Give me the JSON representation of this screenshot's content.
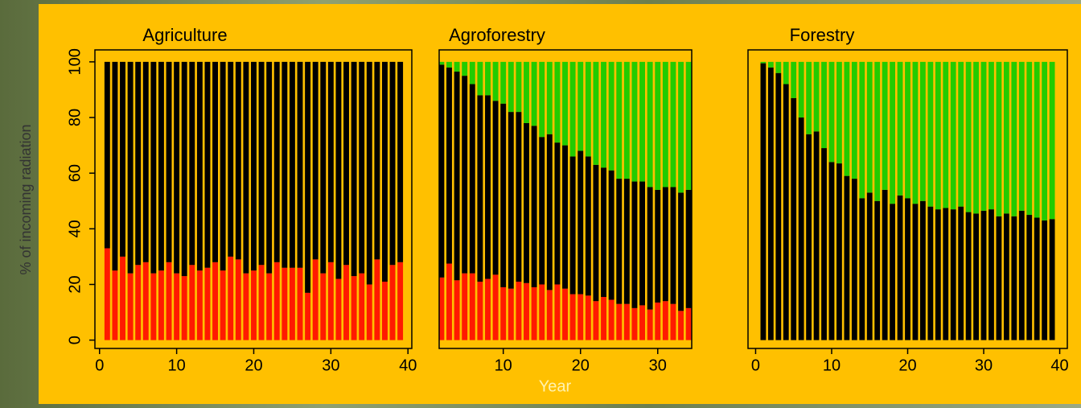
{
  "chart_data": [
    {
      "type": "bar",
      "title": "Agriculture",
      "y_label": "% of incoming radiation",
      "x": [
        1,
        2,
        3,
        4,
        5,
        6,
        7,
        8,
        9,
        10,
        11,
        12,
        13,
        14,
        15,
        16,
        17,
        18,
        19,
        20,
        21,
        22,
        23,
        24,
        25,
        26,
        27,
        28,
        29,
        30,
        31,
        32,
        33,
        34,
        35,
        36,
        37,
        38,
        39
      ],
      "series": [
        {
          "color": "#ff1a00",
          "values": [
            33,
            25,
            30,
            24,
            27,
            28,
            24,
            25,
            28,
            24,
            23,
            27,
            25,
            26,
            28,
            25,
            30,
            29,
            24,
            25,
            27,
            24,
            28,
            26,
            26,
            26,
            17,
            29,
            24,
            28,
            22,
            27,
            23,
            24,
            20,
            29,
            21,
            27,
            28
          ]
        },
        {
          "color": "#000000",
          "values": [
            67,
            75,
            70,
            76,
            73,
            72,
            76,
            75,
            72,
            76,
            77,
            73,
            75,
            74,
            72,
            75,
            70,
            71,
            76,
            75,
            73,
            76,
            72,
            74,
            74,
            74,
            83,
            71,
            76,
            72,
            78,
            73,
            77,
            76,
            80,
            71,
            79,
            73,
            72
          ]
        }
      ],
      "xlim": [
        -0.6,
        40.5
      ],
      "xticks": [
        0,
        10,
        20,
        30,
        40
      ],
      "ylim": [
        -3,
        104.3
      ],
      "yticks": [
        0,
        20,
        40,
        60,
        80,
        100
      ]
    },
    {
      "type": "bar",
      "title": "Agroforestry",
      "x_label": "Year",
      "x": [
        2,
        3,
        4,
        5,
        6,
        7,
        8,
        9,
        10,
        11,
        12,
        13,
        14,
        15,
        16,
        17,
        18,
        19,
        20,
        21,
        22,
        23,
        24,
        25,
        26,
        27,
        28,
        29,
        30,
        31,
        32,
        33,
        34
      ],
      "series": [
        {
          "color": "#ff1a00",
          "values": [
            22.5,
            27.5,
            21.5,
            24,
            24,
            21,
            22,
            23.5,
            19,
            18.5,
            21,
            20.5,
            19,
            20,
            18,
            20,
            18.5,
            16.5,
            16.5,
            16,
            14,
            15.5,
            14.5,
            13,
            13,
            11.5,
            12.5,
            11,
            13.5,
            14,
            13,
            10.5,
            11.5
          ]
        },
        {
          "color": "#000000",
          "values": [
            76.5,
            70.5,
            75,
            71,
            68,
            67,
            66,
            62.5,
            66,
            63.5,
            61,
            57.5,
            58,
            53,
            56,
            51,
            51.5,
            49.5,
            51.5,
            50,
            49,
            46.5,
            46.5,
            45,
            45,
            45.5,
            44.5,
            44,
            40.5,
            41,
            42,
            42.5,
            42.5
          ]
        },
        {
          "color": "#22cc00",
          "values": [
            1,
            2,
            3.5,
            5,
            8,
            12,
            12,
            14,
            15,
            18,
            18,
            22,
            23,
            27,
            26,
            29,
            30,
            34,
            32,
            34,
            37,
            38,
            39,
            42,
            42,
            43,
            43,
            45,
            46,
            45,
            45,
            47,
            46
          ]
        }
      ],
      "xlim": [
        1.7,
        34.4
      ],
      "xticks": [
        10,
        20,
        30
      ],
      "ylim": [
        -3,
        104.3
      ]
    },
    {
      "type": "bar",
      "title": "Forestry",
      "x": [
        1,
        2,
        3,
        4,
        5,
        6,
        7,
        8,
        9,
        10,
        11,
        12,
        13,
        14,
        15,
        16,
        17,
        18,
        19,
        20,
        21,
        22,
        23,
        24,
        25,
        26,
        27,
        28,
        29,
        30,
        31,
        32,
        33,
        34,
        35,
        36,
        37,
        38,
        39
      ],
      "series": [
        {
          "color": "#000000",
          "values": [
            99.5,
            98,
            96,
            92,
            87,
            80,
            74,
            75,
            69,
            64,
            63.5,
            59,
            58,
            51,
            53,
            50,
            54,
            49,
            52,
            51,
            49,
            50,
            48,
            47,
            47.5,
            47,
            48,
            46,
            45.5,
            46.5,
            47,
            44.5,
            45.5,
            44.5,
            46.5,
            45,
            44,
            43,
            43.5
          ]
        },
        {
          "color": "#22cc00",
          "values": [
            0.5,
            2,
            4,
            8,
            13,
            20,
            26,
            25,
            31,
            36,
            36.5,
            41,
            42,
            49,
            47,
            50,
            46,
            51,
            48,
            49,
            51,
            50,
            52,
            53,
            52.5,
            53,
            52,
            54,
            54.5,
            53.5,
            53,
            55.5,
            54.5,
            55.5,
            53.5,
            55,
            56,
            57,
            56.5
          ]
        }
      ],
      "xlim": [
        -1,
        41
      ],
      "xticks": [
        0,
        10,
        20,
        30,
        40
      ],
      "ylim": [
        -3,
        104.3
      ]
    }
  ]
}
